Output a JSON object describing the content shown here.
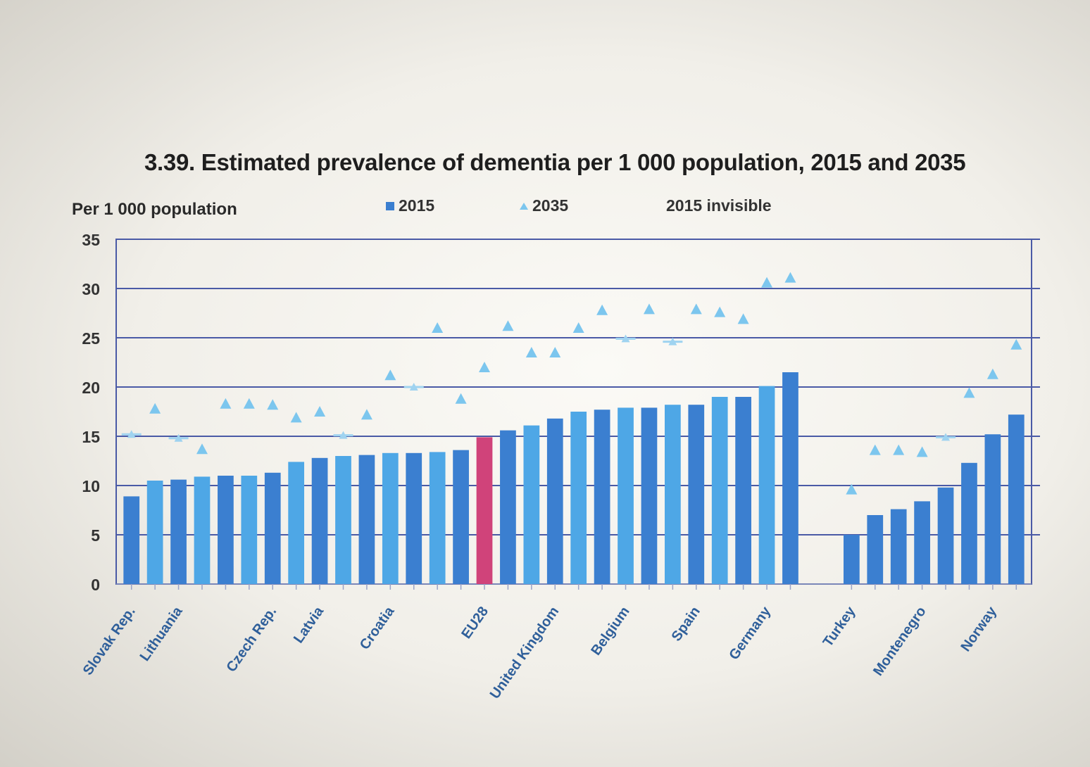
{
  "chart_data": {
    "type": "bar",
    "title": "3.39. Estimated prevalence of dementia per 1 000 population, 2015 and 2035",
    "ylabel": "Per 1 000 population",
    "ylim": [
      0,
      35
    ],
    "yticks": [
      0,
      5,
      10,
      15,
      20,
      25,
      30,
      35
    ],
    "grid": true,
    "legend_position": "top",
    "legend": [
      "2015",
      "2035",
      "2015 invisible"
    ],
    "categories": [
      "Slovak Rep.",
      "",
      "Lithuania",
      "",
      "",
      "",
      "Czech Rep.",
      "",
      "Latvia",
      "",
      "",
      "Croatia",
      "",
      "",
      "",
      "EU28",
      "",
      "",
      "United Kingdom",
      "",
      "",
      "Belgium",
      "",
      "",
      "Spain",
      "",
      "",
      "Germany",
      "",
      "Turkey",
      "",
      "",
      "Montenegro",
      "",
      "",
      "Norway",
      ""
    ],
    "gap_after_index": 28,
    "series": [
      {
        "name": "2015",
        "type": "bar",
        "values": [
          8.9,
          10.5,
          10.6,
          10.9,
          11.0,
          11.0,
          11.3,
          12.4,
          12.8,
          13.0,
          13.1,
          13.3,
          13.3,
          13.4,
          13.6,
          14.9,
          15.6,
          16.1,
          16.8,
          17.5,
          17.7,
          17.9,
          17.9,
          18.2,
          18.2,
          19.0,
          19.0,
          20.1,
          21.5,
          5.0,
          7.0,
          7.6,
          8.4,
          9.8,
          12.3,
          15.2,
          17.2
        ]
      },
      {
        "name": "2035",
        "type": "marker",
        "values": [
          null,
          17.8,
          null,
          13.7,
          18.3,
          18.3,
          18.2,
          16.9,
          17.5,
          null,
          17.2,
          21.2,
          null,
          26.0,
          18.8,
          22.0,
          26.2,
          23.5,
          23.5,
          26.0,
          27.8,
          null,
          27.9,
          null,
          27.9,
          27.6,
          26.9,
          30.6,
          31.1,
          9.6,
          13.6,
          13.6,
          13.4,
          null,
          19.4,
          21.3,
          24.3
        ]
      },
      {
        "name": "2015 invisible",
        "type": "line-marker",
        "values": [
          15.2,
          null,
          14.8,
          null,
          null,
          null,
          null,
          null,
          null,
          15.1,
          null,
          null,
          20.0,
          null,
          null,
          null,
          null,
          null,
          null,
          null,
          null,
          24.9,
          null,
          24.6,
          null,
          null,
          null,
          null,
          null,
          null,
          null,
          null,
          null,
          14.9,
          null,
          null,
          null
        ]
      }
    ],
    "highlight_index": 15,
    "colors": {
      "bar_dark": "#3b7fd0",
      "bar_light": "#4ea7e6",
      "bar_highlight": "#d0437a",
      "marker_2035": "#7cc6ee",
      "marker_invisible": "#9fd3f0",
      "grid": "#4a5aa6",
      "frame": "#4a5aa6"
    }
  }
}
